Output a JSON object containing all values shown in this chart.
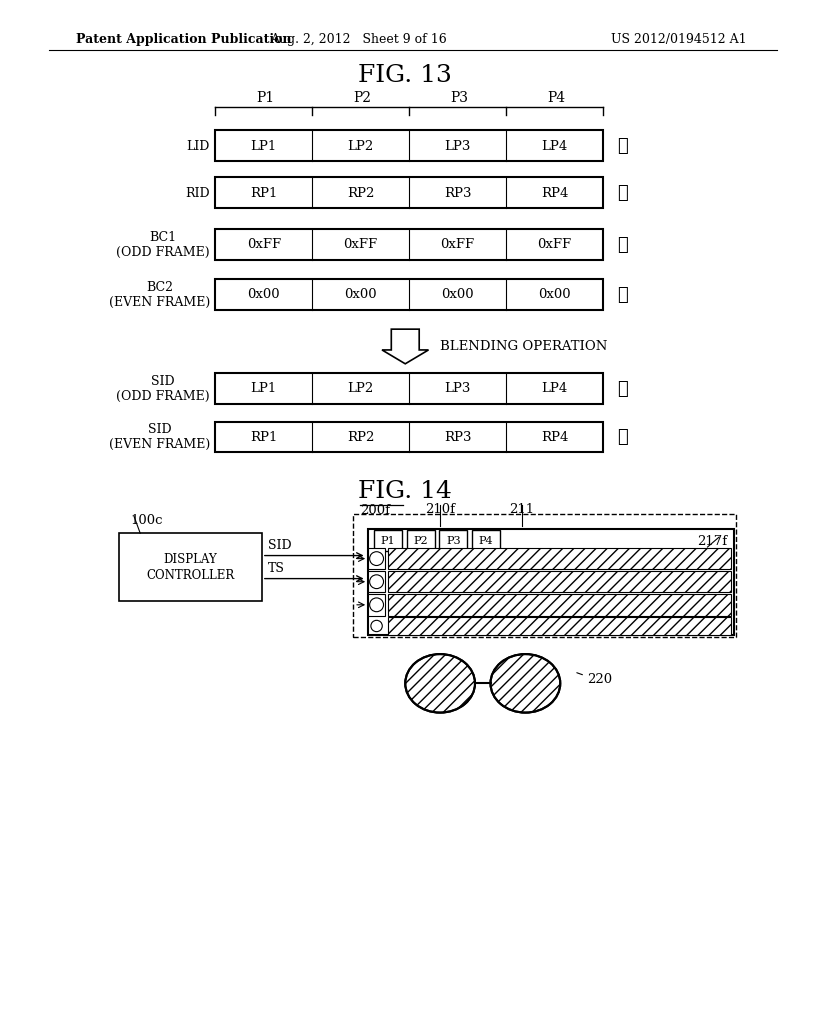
{
  "header_left": "Patent Application Publication",
  "header_mid": "Aug. 2, 2012   Sheet 9 of 16",
  "header_right": "US 2012/0194512 A1",
  "fig13_title": "FIG. 13",
  "fig14_title": "FIG. 14",
  "background": "#ffffff",
  "text_color": "#000000",
  "row_labels_fig13": [
    "LID",
    "RID",
    "BC1\n(ODD FRAME)",
    "BC2\n(EVEN FRAME)",
    "SID\n(ODD FRAME)",
    "SID\n(EVEN FRAME)"
  ],
  "period_labels": [
    "P1",
    "P2",
    "P3",
    "P4"
  ],
  "lid_cells": [
    "LP1",
    "LP2",
    "LP3",
    "LP4"
  ],
  "rid_cells": [
    "RP1",
    "RP2",
    "RP3",
    "RP4"
  ],
  "bc1_cells": [
    "0xFF",
    "0xFF",
    "0xFF",
    "0xFF"
  ],
  "bc2_cells": [
    "0x00",
    "0x00",
    "0x00",
    "0x00"
  ],
  "sid_odd_cells": [
    "LP1",
    "LP2",
    "LP3",
    "LP4"
  ],
  "sid_even_cells": [
    "RP1",
    "RP2",
    "RP3",
    "RP4"
  ],
  "blending_label": "BLENDING OPERATION",
  "label_200f": "200f",
  "label_210f": "210f",
  "label_211": "211",
  "label_217f": "217f",
  "label_100c": "100c",
  "label_220": "220",
  "display_controller_line1": "DISPLAY",
  "display_controller_line2": "CONTROLLER",
  "sid_label": "SID",
  "ts_label": "TS",
  "p_labels_14": [
    "P1",
    "P2",
    "P3",
    "P4"
  ]
}
